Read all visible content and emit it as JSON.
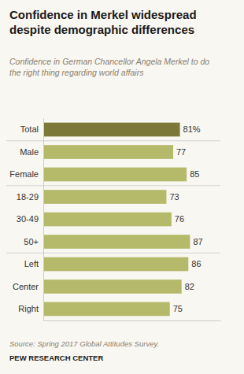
{
  "chart_data": {
    "type": "bar",
    "orientation": "horizontal",
    "title": "Confidence in Merkel widespread\ndespite demographic differences",
    "subtitle": "Confidence in German Chancellor Angela Merkel to do\nthe right thing regarding world affairs",
    "source": "Source: Spring 2017 Global Attitudes Survey.",
    "footer": "PEW RESEARCH CENTER",
    "categories": [
      "Total",
      "Male",
      "Female",
      "18-29",
      "30-49",
      "50+",
      "Left",
      "Center",
      "Right"
    ],
    "values": [
      81,
      77,
      85,
      73,
      76,
      87,
      86,
      82,
      75
    ],
    "value_labels": [
      "81%",
      "77",
      "85",
      "73",
      "76",
      "87",
      "86",
      "82",
      "75"
    ],
    "colors": [
      "#7b7838",
      "#b5ba6b",
      "#b5ba6b",
      "#b5ba6b",
      "#b5ba6b",
      "#b5ba6b",
      "#b5ba6b",
      "#b5ba6b",
      "#b5ba6b"
    ],
    "xlim": [
      0,
      105
    ],
    "data_labels": true,
    "tick_labels": "y",
    "grid": false
  }
}
